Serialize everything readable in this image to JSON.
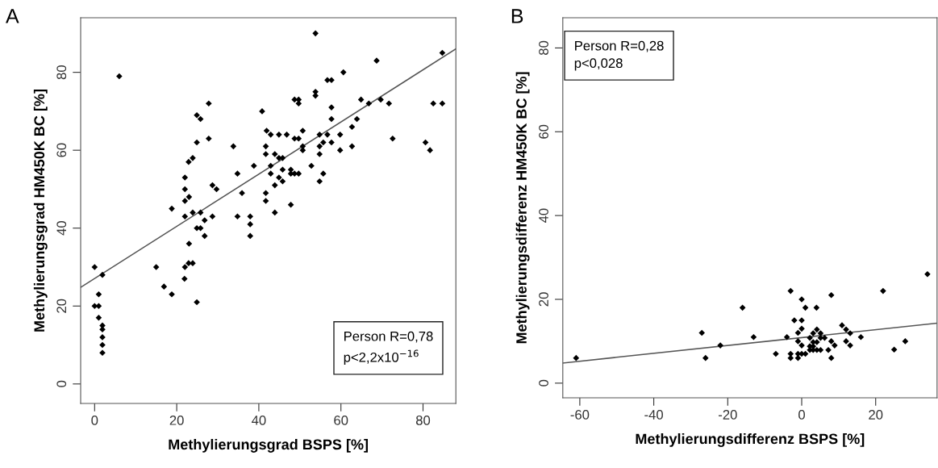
{
  "chart_data": [
    {
      "type": "scatter",
      "xlabel": "Methylierungsgrad BSPS [%]",
      "ylabel": "Methylierungsgrad HM450K BC [%]",
      "annotations": [
        "A",
        "Person R=0,78\np<2,2x10$^{−16}$"
      ],
      "xlim": [
        -3.4,
        88
      ],
      "ylim": [
        -5,
        94
      ],
      "xticks": [
        0,
        20,
        40,
        60,
        80
      ],
      "yticks": [
        0,
        20,
        40,
        60,
        80
      ],
      "grid": false,
      "legend": false,
      "series": [
        {
          "color": "#000000",
          "marker": "diamond",
          "x": [
            0,
            1.9,
            1,
            0,
            1,
            1,
            1.9,
            1.9,
            1.9,
            1.9,
            1.9,
            15,
            16.9,
            18.8,
            24.9,
            21.9,
            22,
            22.9,
            23.9,
            23,
            24.9,
            25.8,
            26.8,
            22,
            23.9,
            25.8,
            26.8,
            28.7,
            18.8,
            22,
            23,
            34.8,
            37.9,
            37.9,
            37.9,
            35.9,
            41.7,
            43.9,
            6,
            27.8,
            24.9,
            25.8,
            40.8,
            27.8,
            24.9,
            33.8,
            23.9,
            22.9,
            38.8,
            34.8,
            22,
            28.7,
            29.7,
            22,
            41.7,
            53.8,
            84.7,
            68.7,
            60.6,
            56.7,
            57.7,
            53.8,
            53.8,
            48.7,
            49.7,
            49.7,
            57.7,
            64.9,
            66.8,
            69.7,
            71.7,
            82.5,
            84.7,
            57.7,
            63.9,
            62.7,
            50.7,
            41.9,
            42.9,
            44.9,
            46.8,
            48.7,
            49.7,
            54.8,
            56.7,
            59.8,
            72.6,
            50.7,
            50.7,
            54.8,
            55.7,
            57.7,
            62.7,
            59.8,
            80.6,
            81.7,
            41.7,
            41.7,
            43.9,
            44.9,
            45.8,
            54.8,
            42.9,
            52.8,
            45.8,
            47.8,
            48.7,
            49.7,
            47.8,
            42.9,
            44.9,
            45.8,
            43.9,
            54.8,
            55.7,
            47.8
          ],
          "values": [
            30,
            28,
            23,
            20,
            20,
            17,
            15,
            14,
            12,
            10,
            8,
            30,
            25,
            23,
            21,
            27,
            30,
            31,
            31,
            36,
            40,
            40,
            38,
            43,
            44,
            44,
            42,
            43,
            45,
            47,
            48,
            43,
            43,
            41,
            38,
            49,
            47,
            44,
            79,
            72,
            69,
            68,
            70,
            63,
            62,
            61,
            58,
            57,
            56,
            54,
            53,
            51,
            50,
            50,
            49,
            90,
            85,
            83,
            80,
            78,
            78,
            75,
            74,
            73,
            73,
            72,
            71,
            73,
            72,
            73,
            72,
            72,
            72,
            68,
            68,
            66,
            65,
            65,
            64,
            64,
            64,
            63,
            63,
            64,
            64,
            64,
            63,
            61,
            60,
            61,
            62,
            62,
            61,
            60,
            62,
            60,
            61,
            59,
            59,
            58,
            58,
            59,
            56,
            56,
            55,
            55,
            54,
            54,
            54,
            54,
            53,
            52,
            51,
            52,
            54,
            46
          ]
        },
        {
          "type": "line",
          "color": "#555555",
          "x": [
            -3.4,
            88
          ],
          "values": [
            24.8,
            86.0
          ]
        }
      ]
    },
    {
      "type": "scatter",
      "xlabel": "Methylierungsdifferenz BSPS [%]",
      "ylabel": "Methylierungsdifferenz HM450K BC [%]",
      "annotations": [
        "B",
        "Person R=0,28\np<0,028"
      ],
      "xlim": [
        -64.6,
        36.6
      ],
      "ylim": [
        -3.5,
        87.2
      ],
      "xticks": [
        -60,
        -40,
        -20,
        0,
        20
      ],
      "yticks": [
        0,
        20,
        40,
        60,
        80
      ],
      "grid": false,
      "legend": false,
      "series": [
        {
          "color": "#000000",
          "marker": "diamond",
          "x": [
            -61,
            -27,
            -26,
            -22,
            -16,
            -13,
            -7,
            -4,
            -3,
            -2,
            0,
            0,
            1,
            4,
            0,
            -1,
            -1,
            0,
            -3,
            -3,
            -1,
            -1,
            0,
            1,
            2.2,
            3.1,
            4.1,
            5.1,
            5.1,
            6.2,
            2.2,
            3.1,
            3.1,
            4.1,
            2.2,
            3.1,
            4.1,
            5.1,
            7.2,
            8,
            8,
            8,
            8.9,
            10.9,
            12,
            13.1,
            12,
            13.1,
            16,
            22,
            25,
            28,
            34
          ],
          "values": [
            6,
            12,
            6,
            9,
            18,
            11,
            7,
            11,
            22,
            15,
            15,
            20,
            18,
            18,
            13,
            12,
            10,
            9,
            7,
            6,
            6,
            7,
            7,
            7,
            10.8,
            11.9,
            12.8,
            11.9,
            10.8,
            10.8,
            8.8,
            9.8,
            8.8,
            9.8,
            7.9,
            7.9,
            7.9,
            7.9,
            7.9,
            6,
            21,
            10,
            9,
            13.8,
            12.8,
            11.9,
            10,
            9,
            11,
            22,
            8,
            10,
            26
          ]
        },
        {
          "type": "line",
          "color": "#555555",
          "x": [
            -64.6,
            36.6
          ],
          "values": [
            4.8,
            14.3
          ]
        }
      ]
    }
  ]
}
